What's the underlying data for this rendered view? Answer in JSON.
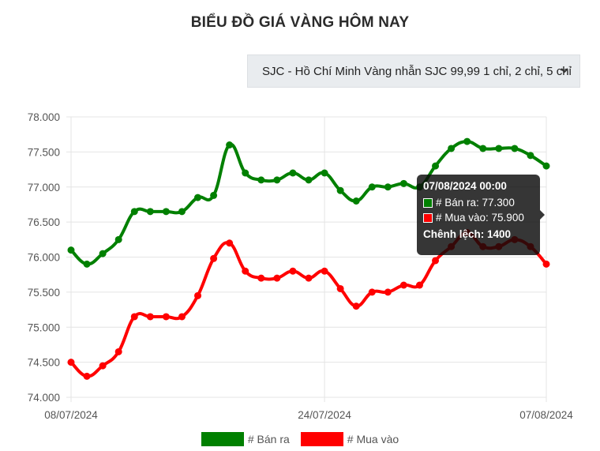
{
  "title": "BIỂU ĐỒ GIÁ VÀNG HÔM NAY",
  "selector": {
    "value": "SJC - Hồ Chí Minh Vàng nhẫn SJC 99,99 1 chỉ, 2 chỉ, 5 chỉ",
    "icon": "chevron-down-icon"
  },
  "chart_data": {
    "type": "line",
    "ylim": [
      74000,
      78000
    ],
    "yticks": [
      78000,
      77500,
      77000,
      76500,
      76000,
      75500,
      75000,
      74500,
      74000
    ],
    "ytick_labels": [
      "78.000",
      "77.500",
      "77.000",
      "76.500",
      "76.000",
      "75.500",
      "75.000",
      "74.500",
      "74.000"
    ],
    "xtick_labels": [
      {
        "index": 0,
        "label": "08/07/2024"
      },
      {
        "index": 16,
        "label": "24/07/2024"
      },
      {
        "index": 30,
        "label": "07/08/2024"
      }
    ],
    "n_points": 31,
    "grid": true,
    "legend_position": "bottom",
    "series": [
      {
        "name": "# Bán ra",
        "color": "#008000",
        "values": [
          76100,
          75900,
          76050,
          76250,
          76650,
          76650,
          76650,
          76650,
          76850,
          76880,
          77600,
          77200,
          77100,
          77100,
          77200,
          77100,
          77200,
          76950,
          76800,
          77000,
          77000,
          77050,
          77000,
          77300,
          77550,
          77650,
          77550,
          77550,
          77550,
          77450,
          77300
        ]
      },
      {
        "name": "# Mua vào",
        "color": "#ff0000",
        "values": [
          74500,
          74300,
          74450,
          74650,
          75150,
          75150,
          75150,
          75150,
          75450,
          75980,
          76200,
          75800,
          75700,
          75700,
          75800,
          75700,
          75800,
          75550,
          75300,
          75500,
          75500,
          75600,
          75600,
          75950,
          76150,
          76350,
          76150,
          76150,
          76250,
          76150,
          75900
        ]
      }
    ],
    "tooltip": {
      "title": "07/08/2024 00:00",
      "lines": [
        "# Bán ra: 77.300",
        "# Mua vào: 75.900"
      ],
      "footer": "Chênh lệch: 1400"
    }
  }
}
